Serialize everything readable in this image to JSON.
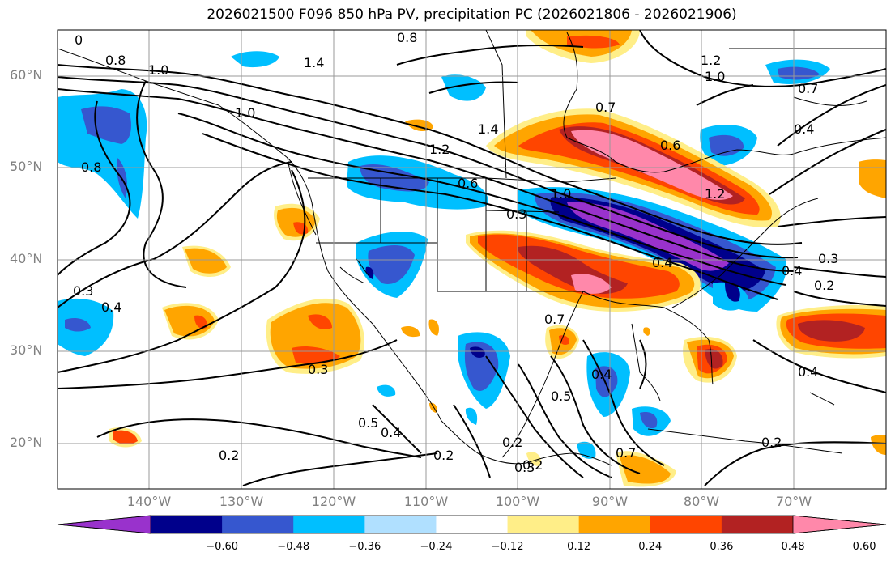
{
  "title": "2026021500 F096 850 hPa PV, precipitation PC (2026021806 - 2026021906)",
  "lat_labels": [
    "60°N",
    "50°N",
    "40°N",
    "30°N",
    "20°N"
  ],
  "lon_labels": [
    "140°W",
    "130°W",
    "120°W",
    "110°W",
    "100°W",
    "90°W",
    "80°W",
    "70°W"
  ],
  "colorbar": {
    "ticks": [
      "−0.60",
      "−0.48",
      "−0.36",
      "−0.24",
      "−0.12",
      "0.12",
      "0.24",
      "0.36",
      "0.48",
      "0.60"
    ],
    "colors": [
      "#9932cc",
      "#00008b",
      "#3657cf",
      "#00bfff",
      "#b0e0ff",
      "#ffffff",
      "#ffee88",
      "#ffa500",
      "#ff4500",
      "#b22222",
      "#ff88aa"
    ]
  },
  "contour_labels": [
    "0.8",
    "1.4",
    "1.0",
    "0.8",
    "1.0",
    "0.8",
    "1.2",
    "1.0",
    "0.7",
    "1.4",
    "1.2",
    "0.6",
    "0.3",
    "0.4",
    "1.0",
    "0.6",
    "0.3",
    "0.2",
    "0.3",
    "0.4",
    "0.3",
    "0.7",
    "0.4",
    "0.5",
    "0.5",
    "0.4",
    "0.2",
    "0.2",
    "0.3",
    "0.2",
    "0.2",
    "0.2",
    "0.4",
    "0.7",
    "0.4",
    "1.2",
    "0.4",
    "0.7",
    "0"
  ]
}
